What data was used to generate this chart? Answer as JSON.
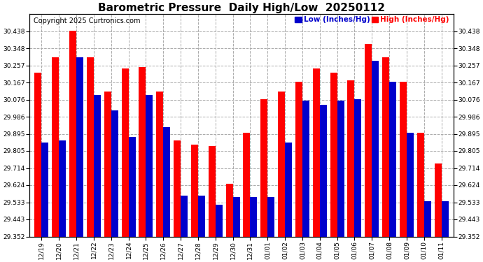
{
  "title": "Barometric Pressure  Daily High/Low  20250112",
  "copyright": "Copyright 2025 Curtronics.com",
  "legend_low": "Low (Inches/Hg)",
  "legend_high": "High (Inches/Hg)",
  "dates": [
    "12/19",
    "12/20",
    "12/21",
    "12/22",
    "12/23",
    "12/24",
    "12/25",
    "12/26",
    "12/27",
    "12/28",
    "12/29",
    "12/30",
    "12/31",
    "01/01",
    "01/02",
    "01/03",
    "01/04",
    "01/05",
    "01/06",
    "01/07",
    "01/08",
    "01/09",
    "01/10",
    "01/11"
  ],
  "high_values": [
    30.22,
    30.3,
    30.44,
    30.3,
    30.12,
    30.24,
    30.25,
    30.12,
    29.86,
    29.84,
    29.83,
    29.63,
    29.9,
    30.08,
    30.12,
    30.17,
    30.24,
    30.22,
    30.18,
    30.37,
    30.3,
    30.17,
    29.9,
    29.74
  ],
  "low_values": [
    29.85,
    29.86,
    30.3,
    30.1,
    30.02,
    29.88,
    30.1,
    29.93,
    29.57,
    29.57,
    29.52,
    29.56,
    29.56,
    29.56,
    29.85,
    30.07,
    30.05,
    30.07,
    30.08,
    30.28,
    30.17,
    29.9,
    29.54,
    29.54
  ],
  "bar_color_high": "#ff0000",
  "bar_color_low": "#0000cc",
  "background_color": "#ffffff",
  "grid_color": "#aaaaaa",
  "ylim_min": 29.352,
  "ylim_max": 30.528,
  "yticks": [
    29.352,
    29.443,
    29.533,
    29.624,
    29.714,
    29.805,
    29.895,
    29.986,
    30.076,
    30.167,
    30.257,
    30.348,
    30.438
  ],
  "title_fontsize": 11,
  "tick_fontsize": 6.5,
  "legend_fontsize": 7.5,
  "copyright_fontsize": 7,
  "bar_bottom": 29.352
}
